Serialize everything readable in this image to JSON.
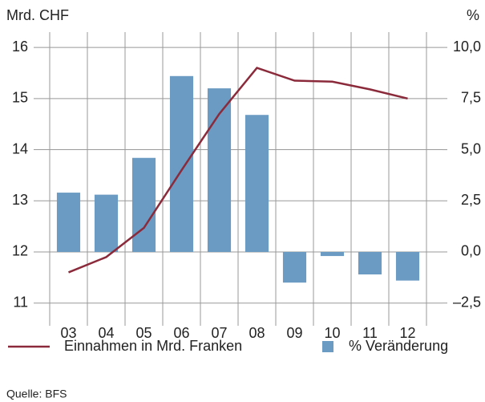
{
  "chart_data": {
    "type": "bar_line",
    "y_label": "Mrd. CHF",
    "y2_label": "%",
    "categories": [
      "03",
      "04",
      "05",
      "06",
      "07",
      "08",
      "09",
      "10",
      "11",
      "12"
    ],
    "series": [
      {
        "name": "Einnahmen in Mrd. Franken",
        "type": "line",
        "color": "#8b2a3a",
        "axis": "y",
        "values": [
          11.6,
          11.9,
          12.47,
          13.6,
          14.7,
          15.6,
          15.35,
          15.33,
          15.18,
          15.0
        ]
      },
      {
        "name": "% Veränderung",
        "type": "bar",
        "color": "#6b9bc3",
        "axis": "y2",
        "values": [
          2.9,
          2.8,
          4.6,
          8.6,
          8.0,
          6.7,
          -1.5,
          -0.2,
          -1.1,
          -1.4
        ]
      }
    ],
    "ylim": [
      10.65,
      16.3
    ],
    "yticks": [
      11,
      12,
      13,
      14,
      15,
      16
    ],
    "y2lim": [
      -3.375,
      10.75
    ],
    "y2ticks": [
      {
        "value": -2.5,
        "label": "–2,5"
      },
      {
        "value": 0,
        "label": "0,0"
      },
      {
        "value": 2.5,
        "label": "2,5"
      },
      {
        "value": 5,
        "label": "5,0"
      },
      {
        "value": 7.5,
        "label": "7,5"
      },
      {
        "value": 10,
        "label": "10,0"
      }
    ],
    "grid": true,
    "source": "Quelle: BFS"
  }
}
